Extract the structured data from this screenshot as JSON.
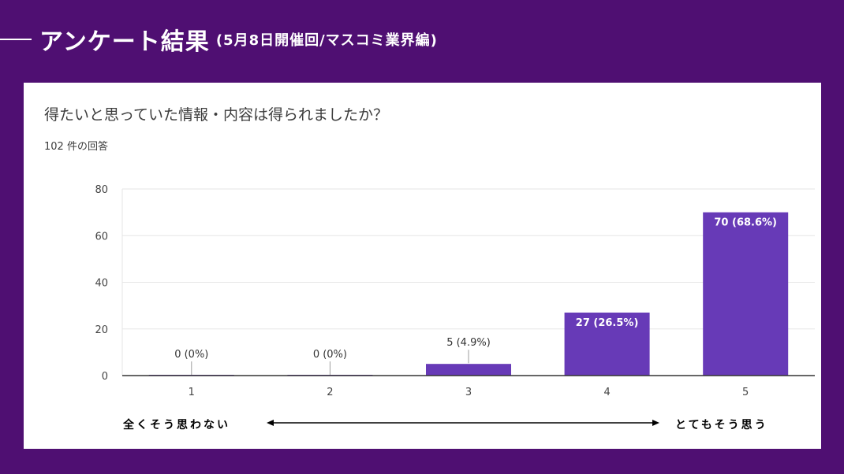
{
  "header": {
    "title": "アンケート結果",
    "subtitle": "(5月8日開催回/マスコミ業界編)"
  },
  "card": {
    "question": "得たいと思っていた情報・内容は得られましたか？",
    "response_count": "102 件の回答",
    "scale_left": "全くそう思わない",
    "scale_right": "とてもそう思う"
  },
  "colors": {
    "background": "#4f0f72",
    "bar": "#673ab7",
    "grid": "#e6e6e6",
    "axis": "#333333"
  },
  "chart_data": {
    "type": "bar",
    "categories": [
      "1",
      "2",
      "3",
      "4",
      "5"
    ],
    "values": [
      0,
      0,
      5,
      27,
      70
    ],
    "data_labels": [
      "0 (0%)",
      "0 (0%)",
      "5 (4.9%)",
      "27 (26.5%)",
      "70 (68.6%)"
    ],
    "yticks": [
      "0",
      "20",
      "40",
      "60",
      "80"
    ],
    "ylim": [
      0,
      80
    ],
    "grid": true,
    "title": "得たいと思っていた情報・内容は得られましたか？"
  }
}
